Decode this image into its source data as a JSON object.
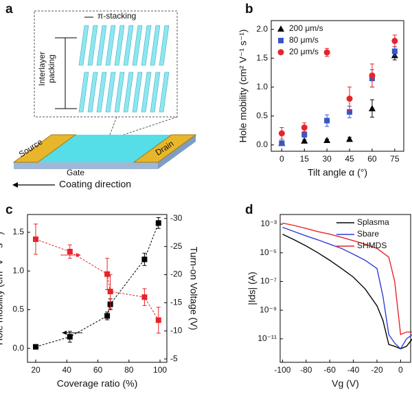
{
  "diagram": {
    "panel": "a",
    "pi_label": "π-stacking",
    "interlayer_label": [
      "Interlayer",
      "packing"
    ],
    "source": "Source",
    "drain": "Drain",
    "gate": "Gate",
    "coating": "Coating direction"
  },
  "chart_data": [
    {
      "panel": "b",
      "type": "scatter",
      "xlabel": "Tilt angle α (°)",
      "ylabel": "Hole mobility (cm² V⁻¹ s⁻¹)",
      "x": [
        0,
        15,
        30,
        45,
        60,
        75
      ],
      "xlim": [
        -7,
        81
      ],
      "xticks": [
        0,
        15,
        30,
        45,
        60,
        75
      ],
      "ylim": [
        -0.11,
        2.15
      ],
      "yticks": [
        {
          "value": 0,
          "label": "0.0"
        },
        {
          "value": 0.5,
          "label": "0.5"
        },
        {
          "value": 1,
          "label": "1.0"
        },
        {
          "value": 1.5,
          "label": "1.5"
        },
        {
          "value": 2,
          "label": "2.0"
        }
      ],
      "legend": "upper left",
      "series": [
        {
          "name": "200 μm/s",
          "color": "#000000",
          "marker": "triangle",
          "values": [
            0.03,
            0.07,
            0.08,
            0.1,
            0.63,
            1.55
          ],
          "errors": [
            0.02,
            0.02,
            0.02,
            0.03,
            0.15,
            0.08
          ]
        },
        {
          "name": "80 μm/s",
          "color": "#3a55c8",
          "marker": "square",
          "values": [
            0.03,
            0.18,
            0.42,
            0.57,
            1.15,
            1.62
          ],
          "errors": [
            0.03,
            0.05,
            0.1,
            0.1,
            0.15,
            0.08
          ]
        },
        {
          "name": "20 μm/s",
          "color": "#e8232a",
          "marker": "circle",
          "values": [
            0.2,
            0.3,
            1.6,
            0.8,
            1.2,
            1.8
          ],
          "errors": [
            0.1,
            0.08,
            0.07,
            0.2,
            0.2,
            0.1
          ]
        }
      ]
    },
    {
      "panel": "c",
      "type": "scatter",
      "xlabel": "Coverage ratio (%)",
      "ylabel": "Hole mobility (cm² V⁻¹ s⁻¹)",
      "y2label": "Turn-on Voltage (V)",
      "xlim": [
        14.7,
        104.4
      ],
      "xticks": [
        20,
        40,
        60,
        80,
        100
      ],
      "ylim": [
        -0.18,
        1.73
      ],
      "yticks": [
        {
          "value": 0,
          "label": "0.0"
        },
        {
          "value": 0.5,
          "label": "0.5"
        },
        {
          "value": 1,
          "label": "1.0"
        },
        {
          "value": 1.5,
          "label": "1.5"
        }
      ],
      "y2lim": [
        -4.4,
        -30.7
      ],
      "y2ticks": [
        -5,
        -10,
        -15,
        -20,
        -25,
        -30
      ],
      "series": [
        {
          "color": "#000000",
          "marker": "square",
          "fit": "dashed",
          "x": [
            20,
            42,
            66,
            68,
            90,
            99
          ],
          "values": [
            0.02,
            0.15,
            0.42,
            0.57,
            1.15,
            1.62
          ],
          "errors": [
            0.02,
            0.07,
            0.05,
            0.07,
            0.08,
            0.07
          ]
        },
        {
          "color": "#e8232a",
          "marker": "square",
          "fit": "dashed",
          "axis": "y2",
          "x": [
            20,
            42,
            66,
            68,
            90,
            99
          ],
          "values": [
            -26.3,
            -24.1,
            -20.1,
            -17.0,
            -16.0,
            -11.9
          ],
          "errors": [
            2.7,
            1.2,
            2.8,
            3.0,
            1.5,
            2.3
          ]
        }
      ]
    },
    {
      "panel": "d",
      "type": "line",
      "xlabel": "Vg (V)",
      "ylabel": "|Ids| (A)",
      "log_y": true,
      "x": [
        -100,
        -90,
        -80,
        -70,
        -60,
        -50,
        -40,
        -30,
        -20,
        -15,
        -10,
        -5,
        0,
        5,
        10
      ],
      "xlim": [
        -102,
        8.5
      ],
      "xticks": [
        -100,
        -80,
        -60,
        -40,
        -20,
        0
      ],
      "ylim": [
        2.3e-13,
        0.0047
      ],
      "yticks": [
        {
          "value": 1e-11,
          "label": "10⁻¹¹"
        },
        {
          "value": 1e-09,
          "label": "10⁻⁹"
        },
        {
          "value": 1e-07,
          "label": "10⁻⁷"
        },
        {
          "value": 1e-05,
          "label": "10⁻⁵"
        },
        {
          "value": 0.001,
          "label": "10⁻³"
        }
      ],
      "legend": "upper right",
      "series": [
        {
          "name": "Splasma",
          "color": "#000000",
          "values": [
            0.0002,
            8e-05,
            3e-05,
            1e-05,
            3e-06,
            8e-07,
            2e-07,
            3e-08,
            2e-09,
            2e-10,
            4e-12,
            3e-12,
            2e-12,
            3e-12,
            1e-11
          ]
        },
        {
          "name": "Sbare",
          "color": "#2b3fd6",
          "values": [
            0.0006,
            0.0003,
            0.00015,
            8e-05,
            4e-05,
            2e-05,
            8e-06,
            3e-06,
            8e-07,
            1e-08,
            2e-11,
            5e-12,
            2e-12,
            1e-11,
            2e-11
          ]
        },
        {
          "name": "SHMDS",
          "color": "#e8232a",
          "values": [
            0.0012,
            0.0008,
            0.0005,
            0.0003,
            0.0002,
            0.00012,
            7e-05,
            4e-05,
            2e-05,
            1e-05,
            5e-06,
            1e-07,
            2e-11,
            3e-11,
            3e-11
          ]
        }
      ]
    }
  ]
}
